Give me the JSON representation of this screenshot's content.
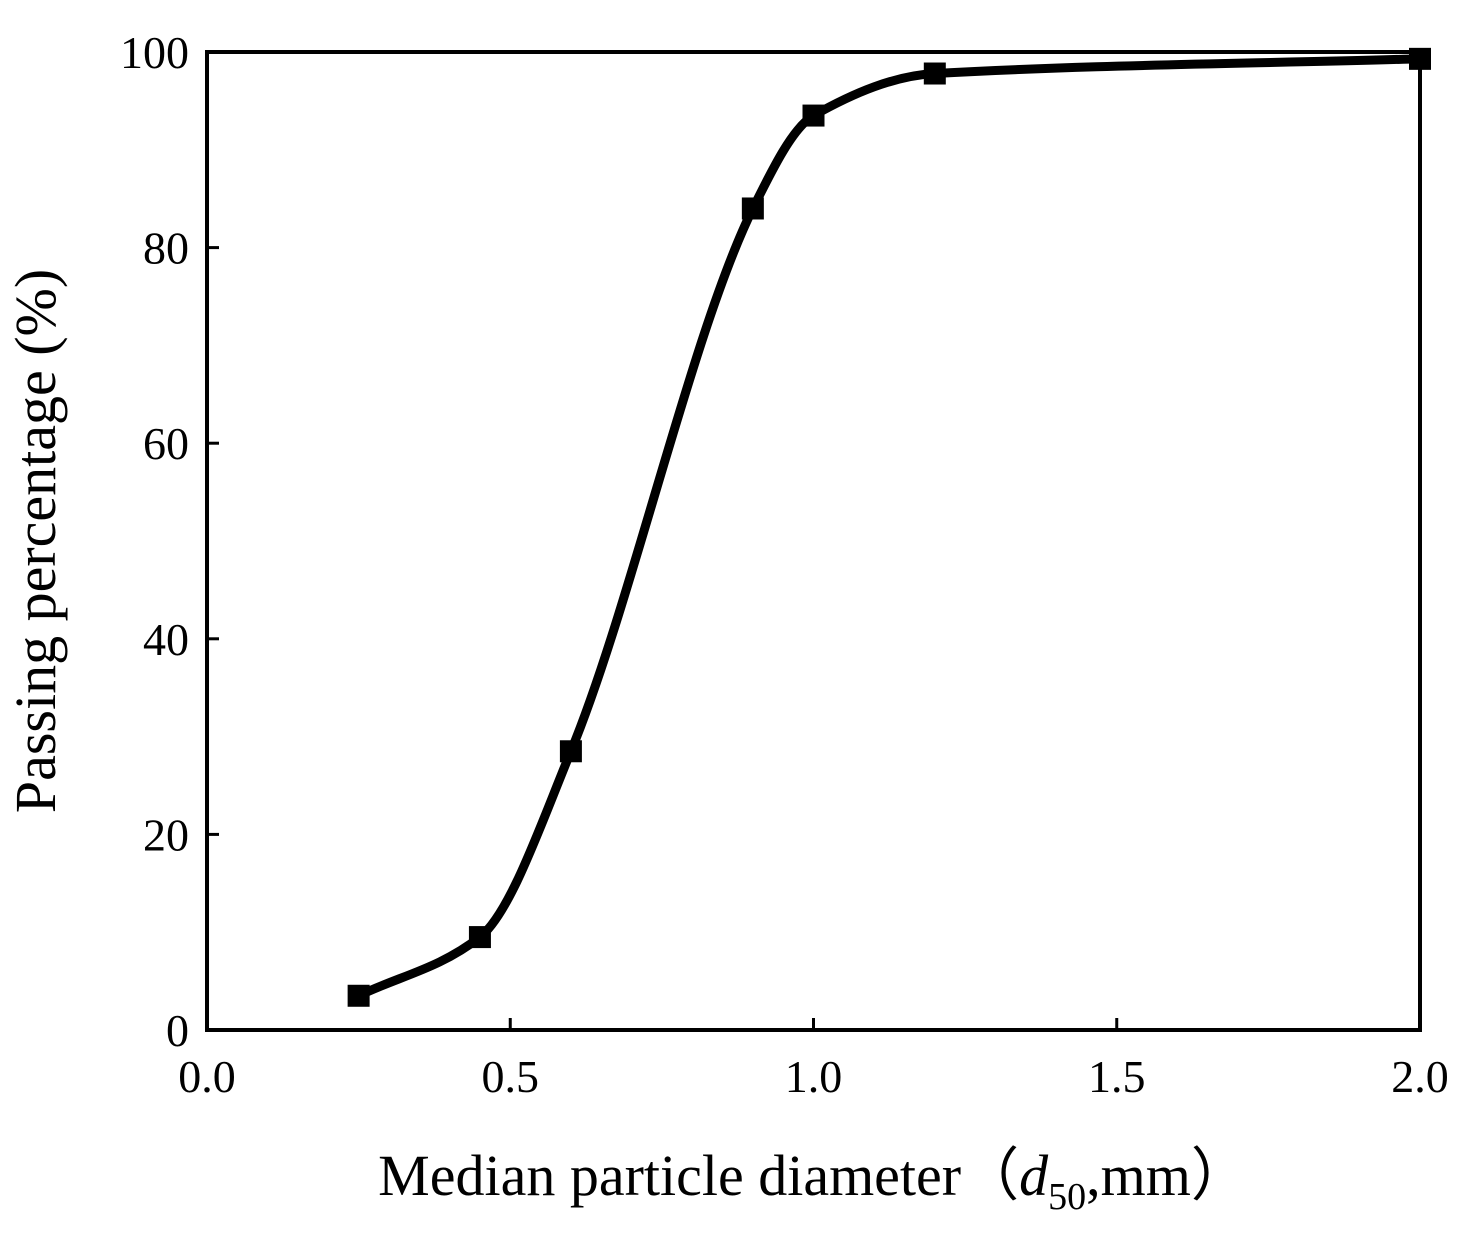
{
  "chart_data": {
    "type": "line",
    "title": "",
    "xlabel": {
      "prefix": "Median particle diameter（",
      "var": "d",
      "sub": "50",
      "suffix": ",mm）"
    },
    "ylabel": "Passing percentage (%)",
    "xlim": [
      0,
      2.0
    ],
    "ylim": [
      0,
      100
    ],
    "xticks": [
      "0.0",
      "0.5",
      "1.0",
      "1.5",
      "2.0"
    ],
    "yticks": [
      "0",
      "20",
      "40",
      "60",
      "80",
      "100"
    ],
    "grid": false,
    "legend": "none",
    "series": [
      {
        "x": [
          0.25,
          0.45,
          0.6,
          0.9,
          1.0,
          1.2,
          2.0
        ],
        "y": [
          3.5,
          9.5,
          28.5,
          84.0,
          93.5,
          97.8,
          99.3
        ],
        "color": "#000000",
        "marker": "square"
      }
    ]
  }
}
